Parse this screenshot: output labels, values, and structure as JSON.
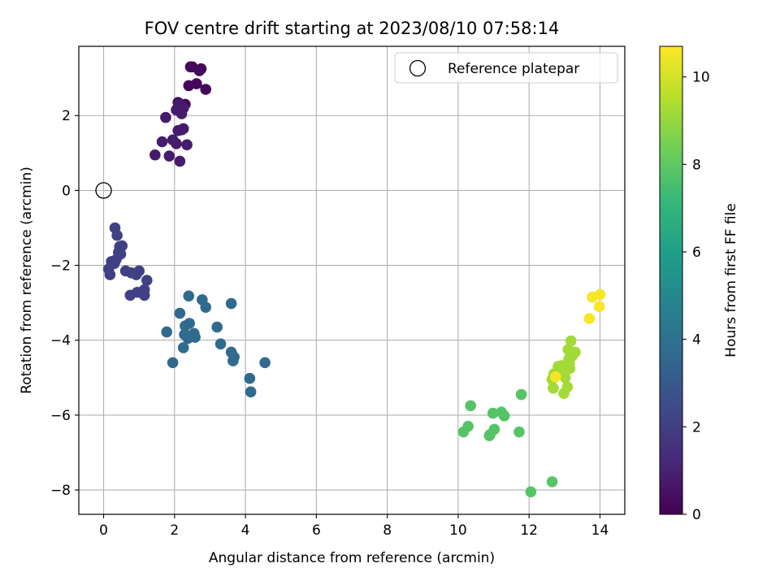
{
  "chart_data": {
    "type": "scatter",
    "title": "FOV centre drift starting at 2023/08/10 07:58:14",
    "xlabel": "Angular distance from reference (arcmin)",
    "ylabel": "Rotation from reference (arcmin)",
    "xlim": [
      -0.7,
      14.7
    ],
    "ylim": [
      -8.65,
      3.85
    ],
    "xticks": [
      0,
      2,
      4,
      6,
      8,
      10,
      12,
      14
    ],
    "yticks": [
      -8,
      -6,
      -4,
      -2,
      0,
      2
    ],
    "grid": true,
    "legend": {
      "placement": "top-right",
      "entries": [
        "Reference platepar"
      ]
    },
    "reference_point": {
      "x": 0,
      "y": 0
    },
    "colorbar": {
      "label": "Hours from first FF file",
      "range": [
        0,
        10.7
      ],
      "ticks": [
        0,
        2,
        4,
        6,
        8,
        10
      ],
      "colormap": "viridis",
      "colormap_stops": [
        "#440154",
        "#482878",
        "#3e4989",
        "#31688e",
        "#26828e",
        "#1f9e89",
        "#35b779",
        "#6ece58",
        "#b5de2b",
        "#fde725"
      ]
    },
    "series": [
      {
        "x": [
          2.5,
          2.75,
          2.62,
          2.4,
          2.1,
          2.3,
          2.88,
          2.45,
          2.7
        ],
        "y": [
          3.3,
          3.25,
          2.85,
          2.8,
          2.35,
          2.3,
          2.7,
          3.3,
          3.2
        ],
        "c": 0.2
      },
      {
        "x": [
          2.05,
          2.25,
          2.2,
          1.75,
          2.1,
          2.25,
          1.65,
          1.95,
          2.05,
          2.35,
          1.45,
          1.85,
          2.15,
          2.12,
          2.2
        ],
        "y": [
          2.15,
          2.2,
          2.05,
          1.95,
          1.6,
          1.65,
          1.3,
          1.35,
          1.25,
          1.22,
          0.95,
          0.92,
          0.78,
          2.3,
          1.62
        ],
        "c": 0.8
      },
      {
        "x": [
          0.32,
          0.38,
          0.45,
          0.52,
          0.42,
          0.48,
          0.35,
          0.22,
          0.14,
          0.18,
          0.62,
          0.78,
          0.92,
          1.0,
          1.22,
          1.15,
          0.75,
          0.95,
          1.15,
          0.3
        ],
        "y": [
          -1.0,
          -1.2,
          -1.5,
          -1.48,
          -1.65,
          -1.7,
          -1.85,
          -1.9,
          -2.1,
          -2.25,
          -2.15,
          -2.2,
          -2.25,
          -2.15,
          -2.4,
          -2.65,
          -2.8,
          -2.72,
          -2.8,
          -1.95
        ],
        "c": 2.1
      },
      {
        "x": [
          2.4,
          2.78,
          2.88,
          2.15,
          1.78,
          2.3,
          2.42,
          2.55,
          2.28,
          2.48,
          2.58,
          2.38,
          2.25,
          1.95,
          3.2,
          3.6,
          3.3,
          3.68,
          3.6,
          3.65,
          4.12,
          4.15,
          4.55
        ],
        "y": [
          -2.82,
          -2.92,
          -3.12,
          -3.28,
          -3.78,
          -3.62,
          -3.55,
          -3.82,
          -3.85,
          -3.88,
          -3.92,
          -3.95,
          -4.2,
          -4.6,
          -3.65,
          -4.32,
          -4.1,
          -4.45,
          -3.02,
          -4.55,
          -5.02,
          -5.38,
          -4.6
        ],
        "c": 3.7
      },
      {
        "x": [
          10.35,
          10.28,
          10.15,
          10.98,
          11.22,
          11.3,
          11.02,
          10.9,
          10.88,
          11.72,
          11.78,
          12.05,
          12.65
        ],
        "y": [
          -5.75,
          -6.3,
          -6.45,
          -5.95,
          -5.92,
          -6.02,
          -6.38,
          -6.52,
          -6.55,
          -6.45,
          -5.45,
          -8.05,
          -7.78
        ],
        "c": 7.8
      },
      {
        "x": [
          12.7,
          12.65,
          12.82,
          12.92,
          13.0,
          13.05,
          13.1,
          13.12,
          13.15,
          13.18,
          13.22,
          13.3,
          12.68,
          13.02,
          12.98,
          13.08,
          13.14,
          12.9
        ],
        "y": [
          -4.9,
          -5.05,
          -4.7,
          -4.68,
          -4.75,
          -4.7,
          -4.25,
          -4.5,
          -4.75,
          -4.02,
          -4.42,
          -4.32,
          -5.28,
          -5.0,
          -5.42,
          -5.25,
          -4.62,
          -4.85
        ],
        "c": 9.2
      },
      {
        "x": [
          12.75,
          13.7,
          13.78,
          14.0,
          13.98
        ],
        "y": [
          -4.98,
          -3.42,
          -2.85,
          -2.78,
          -3.1
        ],
        "c": 10.6
      }
    ]
  }
}
